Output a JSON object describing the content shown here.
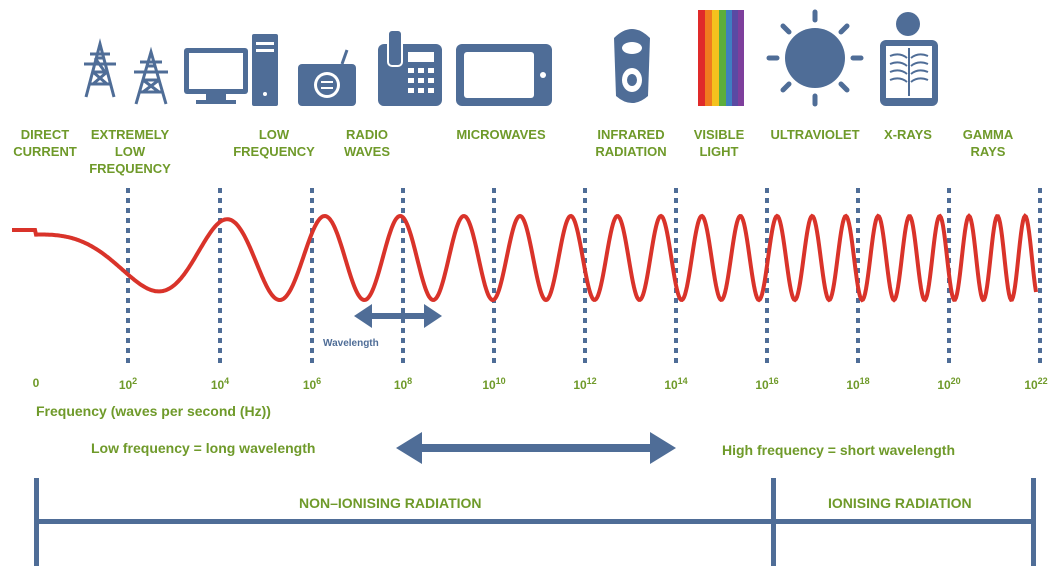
{
  "categories": [
    {
      "id": "direct-current",
      "label": "DIRECT\nCURRENT",
      "icon": "none"
    },
    {
      "id": "extremely-low-frequency",
      "label": "EXTREMELY\nLOW\nFREQUENCY",
      "icon": "power-pylons-icon"
    },
    {
      "id": "low-frequency",
      "label": "LOW\nFREQUENCY",
      "icon": "computer-icon"
    },
    {
      "id": "radio-waves",
      "label": "RADIO\nWAVES",
      "icon": "radio-icon"
    },
    {
      "id": "microwaves",
      "label": "MICROWAVES",
      "icon": "phone-and-microwave-icon"
    },
    {
      "id": "infrared-radiation",
      "label": "INFRARED\nRADIATION",
      "icon": "remote-control-icon"
    },
    {
      "id": "visible-light",
      "label": "VISIBLE\nLIGHT",
      "icon": "rainbow-spectrum-icon"
    },
    {
      "id": "ultraviolet",
      "label": "ULTRAVIOLET",
      "icon": "sun-icon"
    },
    {
      "id": "x-rays",
      "label": "X-RAYS",
      "icon": "xray-person-icon"
    },
    {
      "id": "gamma-rays",
      "label": "GAMMA\nRAYS",
      "icon": "none"
    }
  ],
  "frequency_ticks": [
    {
      "base": "0",
      "exp": ""
    },
    {
      "base": "10",
      "exp": "2"
    },
    {
      "base": "10",
      "exp": "4"
    },
    {
      "base": "10",
      "exp": "6"
    },
    {
      "base": "10",
      "exp": "8"
    },
    {
      "base": "10",
      "exp": "10"
    },
    {
      "base": "10",
      "exp": "12"
    },
    {
      "base": "10",
      "exp": "14"
    },
    {
      "base": "10",
      "exp": "16"
    },
    {
      "base": "10",
      "exp": "18"
    },
    {
      "base": "10",
      "exp": "20"
    },
    {
      "base": "10",
      "exp": "22"
    }
  ],
  "axis_label": "Frequency (waves per second (Hz))",
  "wavelength_label": "Wavelength",
  "low_freq_text": "Low frequency = long wavelength",
  "high_freq_text": "High frequency = short wavelength",
  "non_ionising_label": "NON–IONISING RADIATION",
  "ionising_label": "IONISING RADIATION",
  "colors": {
    "green": "#6f9a2a",
    "blue": "#4f6d97",
    "wave_red": "#d9332a"
  }
}
